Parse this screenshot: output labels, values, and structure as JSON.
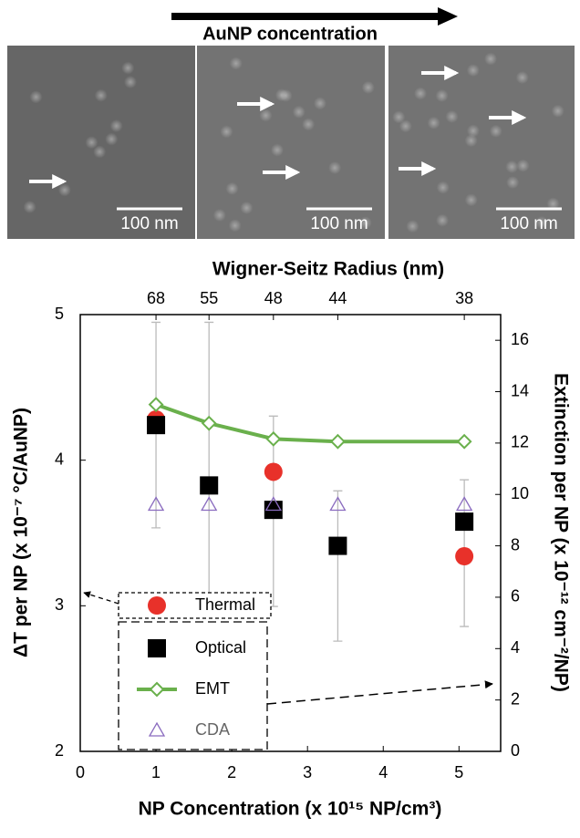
{
  "header": {
    "arrow_label": "AuNP concentration"
  },
  "panels": [
    {
      "scale_bar": "100 nm"
    },
    {
      "scale_bar": "100 nm"
    },
    {
      "scale_bar": "100 nm"
    }
  ],
  "chart_data": {
    "type": "scatter",
    "x2_title": "Wigner-Seitz Radius (nm)",
    "x_title": "NP Concentration (x 10¹⁵ NP/cm³)",
    "y_title": "ΔT per NP (x 10⁻⁷ °C/AuNP)",
    "y2_title": "Extinction per NP (x 10⁻¹² cm⁻²/NP)",
    "xlim": [
      0,
      5.55
    ],
    "xticks": [
      0,
      1,
      2,
      3,
      4,
      5
    ],
    "x2ticks": [
      {
        "value": 1,
        "label": "68"
      },
      {
        "value": 1.7,
        "label": "55"
      },
      {
        "value": 2.55,
        "label": "48"
      },
      {
        "value": 3.4,
        "label": "44"
      },
      {
        "value": 5.07,
        "label": "38"
      }
    ],
    "ylim": [
      2,
      5
    ],
    "yticks": [
      2,
      3,
      4,
      5
    ],
    "y2lim": [
      0,
      17
    ],
    "y2ticks": [
      0,
      2,
      4,
      6,
      8,
      10,
      12,
      14,
      16
    ],
    "series": [
      {
        "name": "Thermal",
        "color": "#e8312a",
        "marker": "circle",
        "x": [
          1,
          2.55,
          5.07
        ],
        "values": [
          4.28,
          3.92,
          3.34
        ]
      },
      {
        "name": "Optical",
        "color": "#000000",
        "marker": "square",
        "axis": "y2",
        "x": [
          1,
          1.7,
          2.55,
          3.4,
          5.07
        ],
        "values": [
          12.7,
          10.35,
          9.4,
          8.0,
          8.94
        ],
        "error_low": [
          8.7,
          5.64,
          5.64,
          4.29,
          4.86
        ],
        "error_high": [
          16.7,
          16.7,
          13.05,
          10.14,
          10.57
        ]
      },
      {
        "name": "EMT",
        "color": "#6ab04c",
        "marker": "diamond-line",
        "axis": "y2",
        "x": [
          1,
          1.7,
          2.55,
          3.4,
          5.07
        ],
        "values": [
          13.5,
          12.77,
          12.16,
          12.06,
          12.06
        ]
      },
      {
        "name": "CDA",
        "color": "#8a6bbf",
        "marker": "triangle",
        "axis": "y2",
        "x": [
          1,
          1.7,
          2.55,
          3.4,
          5.07
        ],
        "values": [
          9.6,
          9.6,
          9.6,
          9.6,
          9.6
        ]
      }
    ]
  }
}
